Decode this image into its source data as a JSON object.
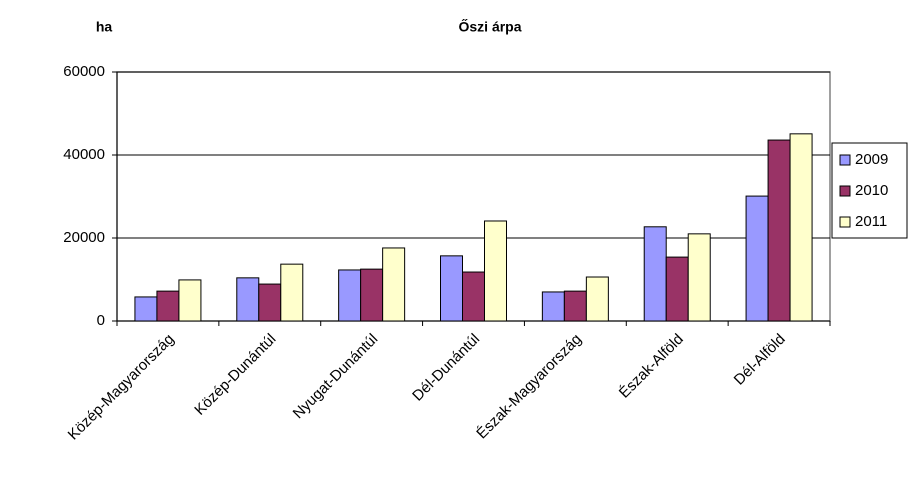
{
  "chart_data": {
    "type": "bar",
    "title": "Őszi árpa",
    "y_label": "ha",
    "categories": [
      "Közép-Magyarország",
      "Közép-Dunántúl",
      "Nyugat-Dunántúl",
      "Dél-Dunántúl",
      "Észak-Magyarország",
      "Észak-Alföld",
      "Dél-Alföld"
    ],
    "series": [
      {
        "name": "2009",
        "color": "#9999ff",
        "values": [
          5800,
          10400,
          12300,
          15700,
          7000,
          22700,
          30100
        ]
      },
      {
        "name": "2010",
        "color": "#993366",
        "values": [
          7200,
          8900,
          12500,
          11800,
          7200,
          15400,
          43600
        ]
      },
      {
        "name": "2011",
        "color": "#ffffcc",
        "values": [
          9900,
          13700,
          17600,
          24100,
          10600,
          21000,
          45100
        ]
      }
    ],
    "ylim": [
      0,
      60000
    ],
    "yticks": [
      0,
      20000,
      40000,
      60000
    ],
    "grid": true,
    "legend": "right"
  }
}
